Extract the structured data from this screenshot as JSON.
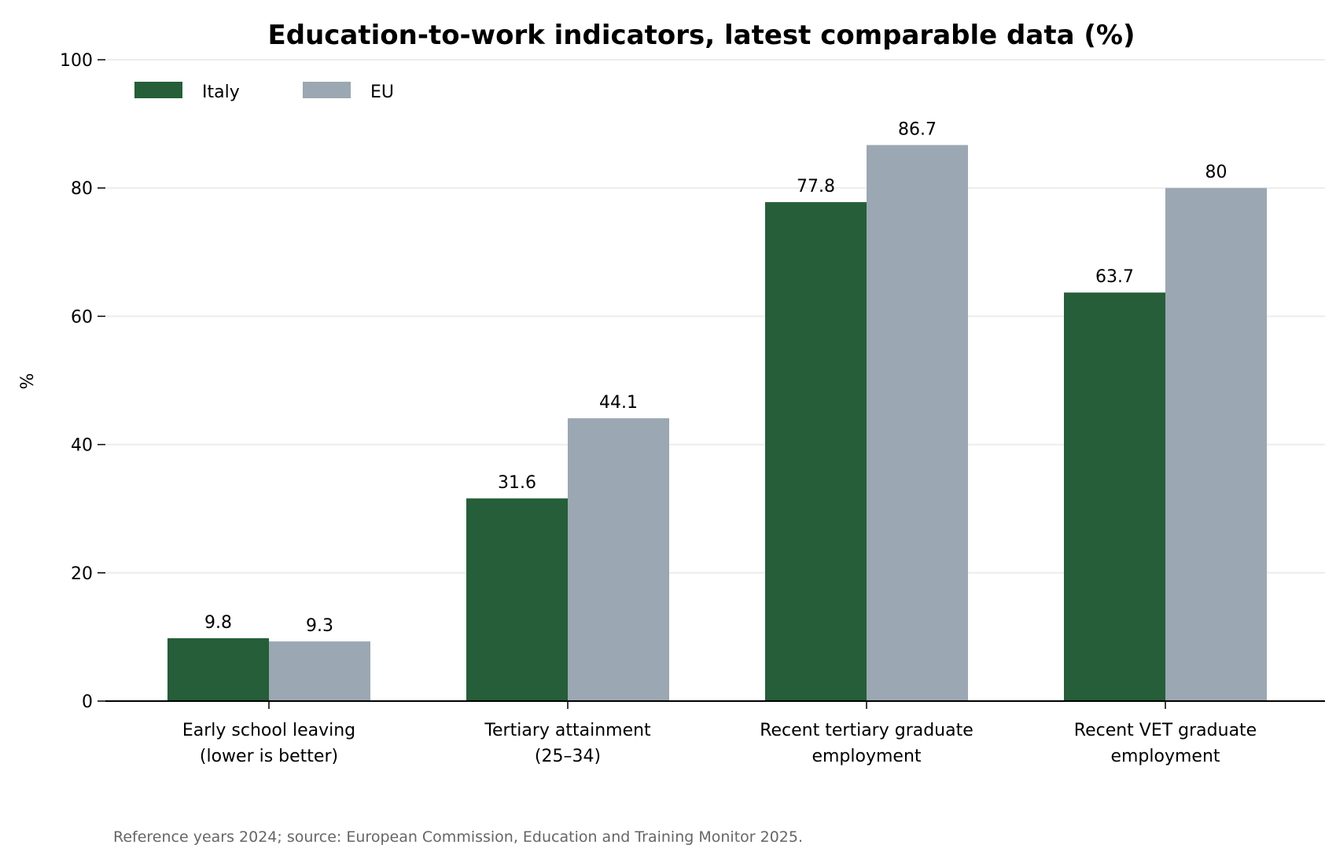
{
  "chart_data": {
    "type": "bar",
    "title": "Education-to-work indicators, latest comparable data (%)",
    "ylabel": "%",
    "xlabel": "",
    "ylim": [
      0,
      100
    ],
    "yticks": [
      0,
      20,
      40,
      60,
      80,
      100
    ],
    "grid": "horizontal",
    "legend_position": "top-left",
    "categories": [
      [
        "Early school leaving",
        "(lower is better)"
      ],
      [
        "Tertiary attainment",
        "(25–34)"
      ],
      [
        "Recent tertiary graduate",
        "employment"
      ],
      [
        "Recent VET graduate",
        "employment"
      ]
    ],
    "series": [
      {
        "name": "Italy",
        "color": "#255e38",
        "values": [
          9.8,
          31.6,
          77.8,
          63.7
        ]
      },
      {
        "name": "EU",
        "color": "#9ba7b2",
        "values": [
          9.3,
          44.1,
          86.7,
          80
        ]
      }
    ],
    "footnote": "Reference years 2024; source: European Commission, Education and Training Monitor 2025."
  }
}
